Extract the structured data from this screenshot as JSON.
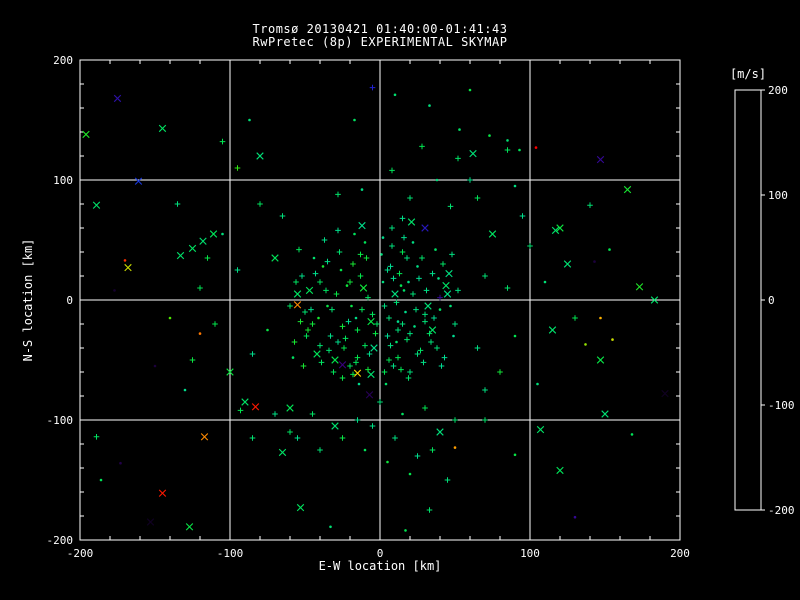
{
  "window": {
    "background": "#000000",
    "text_color": "#ffffff"
  },
  "chart_data": {
    "type": "scatter",
    "title": "Tromsø 20130421 01:40:00-01:41:43",
    "subtitle": "RwPretec (8p) EXPERIMENTAL SKYMAP",
    "xlabel": "E-W location [km]",
    "ylabel": "N-S location [km]",
    "xlim": [
      -200,
      200
    ],
    "ylim": [
      -200,
      200
    ],
    "xticks": [
      -200,
      -100,
      0,
      100,
      200
    ],
    "yticks": [
      -200,
      -100,
      0,
      100,
      200
    ],
    "grid": true,
    "gridlines_x": [
      -100,
      0,
      100
    ],
    "gridlines_y": [
      -100,
      0,
      100
    ],
    "legend_position": "none",
    "colorbar": {
      "label": "[m/s]",
      "min": -200,
      "max": 200,
      "ticks": [
        200,
        100,
        0,
        -100,
        -200
      ],
      "stops": [
        [
          -200,
          "#0a0014"
        ],
        [
          -160,
          "#3a0080"
        ],
        [
          -120,
          "#2020d0"
        ],
        [
          -80,
          "#0080ff"
        ],
        [
          -40,
          "#00c8e0"
        ],
        [
          0,
          "#00dc96"
        ],
        [
          40,
          "#00e650"
        ],
        [
          80,
          "#40e800"
        ],
        [
          120,
          "#b0e000"
        ],
        [
          150,
          "#ffd800"
        ],
        [
          175,
          "#ff7800"
        ],
        [
          200,
          "#ff0000"
        ]
      ]
    },
    "symbols": {
      "0": "plus",
      "1": "cross",
      "2": "dot"
    },
    "points": [
      [
        3,
        -5,
        12,
        0
      ],
      [
        -8,
        2,
        30,
        0
      ],
      [
        12,
        -18,
        5,
        2
      ],
      [
        -15,
        -25,
        42,
        0
      ],
      [
        22,
        5,
        18,
        0
      ],
      [
        -4,
        -40,
        8,
        1
      ],
      [
        18,
        -33,
        25,
        0
      ],
      [
        -22,
        12,
        50,
        2
      ],
      [
        7,
        28,
        2,
        0
      ],
      [
        -12,
        -8,
        35,
        0
      ],
      [
        30,
        -12,
        15,
        0
      ],
      [
        -35,
        -5,
        45,
        2
      ],
      [
        9,
        -55,
        10,
        0
      ],
      [
        -6,
        -62,
        22,
        1
      ],
      [
        15,
        40,
        38,
        0
      ],
      [
        -28,
        -35,
        6,
        0
      ],
      [
        40,
        -8,
        28,
        2
      ],
      [
        -18,
        30,
        55,
        0
      ],
      [
        25,
        -45,
        14,
        0
      ],
      [
        -40,
        15,
        33,
        0
      ],
      [
        2,
        15,
        12,
        2
      ],
      [
        -2,
        -20,
        30,
        0
      ],
      [
        35,
        22,
        5,
        0
      ],
      [
        -30,
        -50,
        42,
        1
      ],
      [
        11,
        -2,
        18,
        0
      ],
      [
        -16,
        -15,
        8,
        2
      ],
      [
        28,
        35,
        25,
        0
      ],
      [
        -45,
        -20,
        50,
        0
      ],
      [
        5,
        -30,
        2,
        0
      ],
      [
        -10,
        48,
        35,
        2
      ],
      [
        20,
        -60,
        15,
        0
      ],
      [
        -25,
        -65,
        45,
        0
      ],
      [
        45,
        5,
        10,
        1
      ],
      [
        -50,
        -10,
        22,
        0
      ],
      [
        14,
        12,
        38,
        2
      ],
      [
        -7,
        -45,
        6,
        0
      ],
      [
        33,
        -28,
        28,
        0
      ],
      [
        -38,
        28,
        55,
        2
      ],
      [
        8,
        60,
        14,
        0
      ],
      [
        -20,
        -55,
        33,
        0
      ],
      [
        50,
        -20,
        12,
        0
      ],
      [
        -55,
        5,
        30,
        1
      ],
      [
        17,
        -10,
        5,
        2
      ],
      [
        -13,
        20,
        42,
        0
      ],
      [
        38,
        -40,
        18,
        0
      ],
      [
        -33,
        -30,
        8,
        0
      ],
      [
        4,
        -70,
        25,
        2
      ],
      [
        -9,
        35,
        50,
        0
      ],
      [
        26,
        18,
        2,
        0
      ],
      [
        -42,
        -45,
        35,
        1
      ],
      [
        12,
        -25,
        15,
        0
      ],
      [
        -19,
        -5,
        45,
        2
      ],
      [
        31,
        8,
        10,
        0
      ],
      [
        -27,
        40,
        22,
        0
      ],
      [
        6,
        -50,
        38,
        0
      ],
      [
        -14,
        -70,
        6,
        2
      ],
      [
        42,
        30,
        28,
        0
      ],
      [
        -48,
        -25,
        55,
        0
      ],
      [
        10,
        5,
        14,
        1
      ],
      [
        -5,
        -12,
        33,
        0
      ],
      [
        23,
        -22,
        12,
        2
      ],
      [
        -36,
        8,
        30,
        0
      ],
      [
        16,
        52,
        5,
        0
      ],
      [
        -24,
        -40,
        42,
        0
      ],
      [
        47,
        -5,
        18,
        2
      ],
      [
        -52,
        20,
        8,
        0
      ],
      [
        19,
        -65,
        25,
        0
      ],
      [
        -11,
        10,
        50,
        1
      ],
      [
        36,
        -15,
        2,
        0
      ],
      [
        -31,
        -60,
        35,
        0
      ],
      [
        1,
        38,
        15,
        2
      ],
      [
        -3,
        -28,
        45,
        0
      ],
      [
        29,
        -52,
        10,
        0
      ],
      [
        -44,
        35,
        22,
        2
      ],
      [
        13,
        22,
        38,
        0
      ],
      [
        -21,
        -18,
        6,
        0
      ],
      [
        44,
        12,
        28,
        1
      ],
      [
        -57,
        -35,
        55,
        0
      ],
      [
        7,
        -38,
        14,
        0
      ],
      [
        -17,
        55,
        33,
        2
      ],
      [
        24,
        -8,
        12,
        0
      ],
      [
        -39,
        -52,
        30,
        0
      ],
      [
        9,
        18,
        5,
        0
      ],
      [
        -26,
        25,
        42,
        2
      ],
      [
        34,
        -35,
        18,
        0
      ],
      [
        -46,
        -8,
        8,
        0
      ],
      [
        21,
        65,
        25,
        1
      ],
      [
        -8,
        -58,
        50,
        0
      ],
      [
        49,
        -30,
        2,
        2
      ],
      [
        -54,
        42,
        35,
        0
      ],
      [
        15,
        -20,
        15,
        0
      ],
      [
        -29,
        5,
        45,
        0
      ],
      [
        39,
        18,
        10,
        2
      ],
      [
        -34,
        -42,
        22,
        0
      ],
      [
        3,
        -60,
        38,
        0
      ],
      [
        -12,
        62,
        6,
        1
      ],
      [
        27,
        -42,
        28,
        0
      ],
      [
        -41,
        -15,
        55,
        2
      ],
      [
        18,
        35,
        14,
        0
      ],
      [
        -23,
        -32,
        33,
        0
      ],
      [
        52,
        8,
        12,
        0
      ],
      [
        -58,
        -48,
        30,
        2
      ],
      [
        5,
        25,
        5,
        0
      ],
      [
        -15,
        -48,
        42,
        0
      ],
      [
        32,
        -5,
        18,
        1
      ],
      [
        -37,
        50,
        8,
        0
      ],
      [
        11,
        -35,
        25,
        2
      ],
      [
        -20,
        15,
        50,
        0
      ],
      [
        43,
        -48,
        2,
        0
      ],
      [
        -49,
        -30,
        35,
        0
      ],
      [
        8,
        45,
        15,
        0
      ],
      [
        -6,
        -18,
        45,
        1
      ],
      [
        25,
        28,
        10,
        2
      ],
      [
        -32,
        -8,
        22,
        0
      ],
      [
        14,
        -58,
        38,
        0
      ],
      [
        -43,
        22,
        6,
        0
      ],
      [
        37,
        42,
        28,
        2
      ],
      [
        -51,
        -55,
        55,
        0
      ],
      [
        20,
        -28,
        14,
        0
      ],
      [
        -10,
        -38,
        33,
        0
      ],
      [
        46,
        22,
        12,
        1
      ],
      [
        -56,
        15,
        30,
        0
      ],
      [
        2,
        52,
        5,
        2
      ],
      [
        -18,
        -62,
        42,
        0
      ],
      [
        30,
        -18,
        18,
        0
      ],
      [
        -35,
        32,
        8,
        0
      ],
      [
        16,
        8,
        25,
        2
      ],
      [
        -25,
        -22,
        50,
        0
      ],
      [
        41,
        -55,
        2,
        0
      ],
      [
        -47,
        8,
        35,
        1
      ],
      [
        6,
        -15,
        15,
        0
      ],
      [
        -13,
        38,
        45,
        0
      ],
      [
        22,
        48,
        10,
        2
      ],
      [
        -40,
        -38,
        22,
        0
      ],
      [
        12,
        -48,
        38,
        0
      ],
      [
        -28,
        58,
        6,
        0
      ],
      [
        35,
        -25,
        28,
        1
      ],
      [
        -53,
        -18,
        55,
        0
      ],
      [
        19,
        15,
        14,
        2
      ],
      [
        -16,
        -52,
        33,
        0
      ],
      [
        48,
        38,
        12,
        0
      ],
      [
        -60,
        -5,
        30,
        0
      ],
      [
        70,
        20,
        20,
        0
      ],
      [
        -70,
        35,
        35,
        1
      ],
      [
        65,
        -40,
        10,
        0
      ],
      [
        -75,
        -25,
        45,
        2
      ],
      [
        85,
        10,
        25,
        0
      ],
      [
        -85,
        -45,
        5,
        0
      ],
      [
        75,
        55,
        30,
        1
      ],
      [
        -65,
        70,
        15,
        0
      ],
      [
        90,
        -30,
        40,
        2
      ],
      [
        -95,
        25,
        8,
        0
      ],
      [
        100,
        45,
        22,
        0
      ],
      [
        -100,
        -60,
        48,
        1
      ],
      [
        70,
        -75,
        12,
        0
      ],
      [
        -80,
        80,
        32,
        0
      ],
      [
        110,
        15,
        18,
        2
      ],
      [
        -110,
        -20,
        42,
        0
      ],
      [
        95,
        70,
        6,
        0
      ],
      [
        -90,
        -85,
        28,
        1
      ],
      [
        80,
        -60,
        52,
        0
      ],
      [
        -105,
        55,
        15,
        2
      ],
      [
        65,
        85,
        35,
        0
      ],
      [
        -70,
        -95,
        10,
        0
      ],
      [
        115,
        -25,
        24,
        1
      ],
      [
        -115,
        35,
        44,
        0
      ],
      [
        105,
        -70,
        16,
        2
      ],
      [
        -120,
        10,
        38,
        0
      ],
      [
        60,
        100,
        8,
        0
      ],
      [
        -60,
        -110,
        30,
        0
      ],
      [
        125,
        30,
        20,
        1
      ],
      [
        -125,
        -50,
        46,
        0
      ],
      [
        90,
        95,
        12,
        2
      ],
      [
        -95,
        110,
        70,
        0
      ],
      [
        70,
        -100,
        26,
        0
      ],
      [
        -80,
        120,
        18,
        1
      ],
      [
        130,
        -15,
        40,
        0
      ],
      [
        -130,
        -75,
        6,
        2
      ],
      [
        85,
        125,
        34,
        0
      ],
      [
        -85,
        -115,
        22,
        0
      ],
      [
        120,
        60,
        48,
        1
      ],
      [
        -135,
        80,
        14,
        0
      ],
      [
        0,
        -85,
        18,
        0
      ],
      [
        15,
        -95,
        30,
        2
      ],
      [
        -15,
        -100,
        8,
        0
      ],
      [
        30,
        -90,
        40,
        0
      ],
      [
        -30,
        -105,
        22,
        1
      ],
      [
        10,
        -115,
        12,
        0
      ],
      [
        -10,
        -125,
        35,
        2
      ],
      [
        25,
        -130,
        5,
        0
      ],
      [
        -25,
        -115,
        45,
        0
      ],
      [
        40,
        -110,
        15,
        1
      ],
      [
        -45,
        -95,
        28,
        0
      ],
      [
        5,
        -135,
        50,
        2
      ],
      [
        -5,
        -105,
        10,
        0
      ],
      [
        35,
        -125,
        32,
        0
      ],
      [
        -40,
        -125,
        20,
        0
      ],
      [
        20,
        -145,
        42,
        2
      ],
      [
        -55,
        -115,
        6,
        0
      ],
      [
        50,
        -100,
        25,
        0
      ],
      [
        -60,
        -90,
        38,
        1
      ],
      [
        45,
        -150,
        16,
        0
      ],
      [
        20,
        85,
        20,
        0
      ],
      [
        38,
        100,
        15,
        2
      ],
      [
        52,
        118,
        28,
        0
      ],
      [
        8,
        108,
        35,
        0
      ],
      [
        -12,
        92,
        10,
        2
      ],
      [
        47,
        78,
        22,
        0
      ],
      [
        62,
        122,
        18,
        1
      ],
      [
        28,
        128,
        40,
        0
      ],
      [
        -28,
        88,
        25,
        0
      ],
      [
        15,
        68,
        8,
        0
      ],
      [
        -196,
        138,
        60,
        1
      ],
      [
        -186,
        -150,
        35,
        2
      ],
      [
        -153,
        -185,
        -195,
        1
      ],
      [
        -127,
        -189,
        45,
        1
      ],
      [
        -145,
        -161,
        195,
        1
      ],
      [
        -168,
        27,
        130,
        1
      ],
      [
        -170,
        33,
        190,
        2
      ],
      [
        -177,
        8,
        -190,
        2
      ],
      [
        -189,
        79,
        25,
        1
      ],
      [
        -161,
        99,
        -110,
        1
      ],
      [
        -175,
        168,
        -140,
        1
      ],
      [
        -145,
        143,
        30,
        1
      ],
      [
        -105,
        132,
        40,
        0
      ],
      [
        -87,
        150,
        18,
        2
      ],
      [
        -133,
        37,
        25,
        1
      ],
      [
        -125,
        43,
        30,
        1
      ],
      [
        -118,
        49,
        22,
        1
      ],
      [
        -111,
        55,
        35,
        1
      ],
      [
        -117,
        -114,
        170,
        1
      ],
      [
        -65,
        -127,
        28,
        1
      ],
      [
        -93,
        -92,
        40,
        0
      ],
      [
        -83,
        -89,
        195,
        1
      ],
      [
        -189,
        -114,
        30,
        0
      ],
      [
        -173,
        -136,
        -180,
        2
      ],
      [
        -53,
        -173,
        32,
        1
      ],
      [
        -33,
        -189,
        20,
        2
      ],
      [
        33,
        -175,
        25,
        0
      ],
      [
        17,
        -192,
        40,
        2
      ],
      [
        104,
        127,
        200,
        2
      ],
      [
        147,
        117,
        -150,
        1
      ],
      [
        165,
        92,
        55,
        1
      ],
      [
        140,
        79,
        20,
        0
      ],
      [
        173,
        11,
        60,
        1
      ],
      [
        183,
        0,
        25,
        1
      ],
      [
        147,
        -15,
        160,
        2
      ],
      [
        155,
        -33,
        130,
        2
      ],
      [
        137,
        -37,
        110,
        2
      ],
      [
        147,
        -50,
        45,
        1
      ],
      [
        190,
        -78,
        -195,
        1
      ],
      [
        107,
        -108,
        28,
        1
      ],
      [
        90,
        -129,
        45,
        2
      ],
      [
        130,
        -181,
        -150,
        2
      ],
      [
        120,
        -142,
        35,
        1
      ],
      [
        -5,
        177,
        -120,
        0
      ],
      [
        10,
        171,
        22,
        2
      ],
      [
        -17,
        150,
        30,
        2
      ],
      [
        33,
        162,
        15,
        2
      ],
      [
        53,
        142,
        28,
        2
      ],
      [
        73,
        137,
        45,
        2
      ],
      [
        85,
        133,
        20,
        2
      ],
      [
        93,
        125,
        35,
        2
      ],
      [
        117,
        58,
        25,
        1
      ],
      [
        153,
        42,
        40,
        2
      ],
      [
        143,
        32,
        -185,
        2
      ],
      [
        50,
        -123,
        165,
        2
      ],
      [
        -7,
        -79,
        -175,
        1
      ],
      [
        -25,
        -54,
        -160,
        1
      ],
      [
        -15,
        -61,
        150,
        1
      ],
      [
        40,
        2,
        -150,
        0
      ],
      [
        -55,
        -4,
        170,
        1
      ],
      [
        30,
        60,
        -130,
        1
      ],
      [
        60,
        175,
        45,
        2
      ],
      [
        150,
        -95,
        20,
        1
      ],
      [
        168,
        -112,
        35,
        2
      ],
      [
        -140,
        -15,
        85,
        2
      ],
      [
        -150,
        -55,
        -185,
        2
      ],
      [
        -120,
        -28,
        175,
        2
      ]
    ]
  }
}
